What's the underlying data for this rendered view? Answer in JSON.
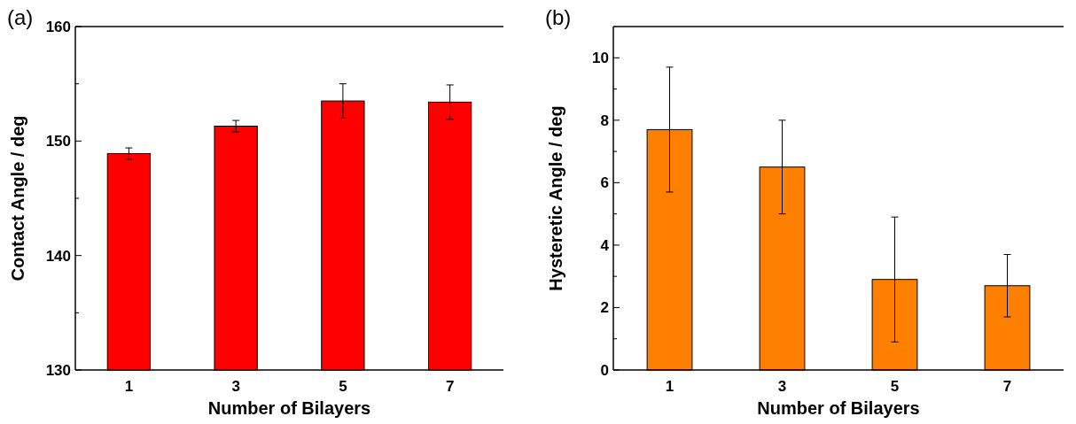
{
  "chart_data": [
    {
      "type": "bar",
      "title": "(a)",
      "xlabel": "Number of Bilayers",
      "ylabel": "Contact Angle / deg",
      "categories": [
        "1",
        "3",
        "5",
        "7"
      ],
      "values": [
        148.9,
        151.3,
        153.5,
        153.4
      ],
      "errors": [
        0.5,
        0.5,
        1.5,
        1.5
      ],
      "color": "#ff0000",
      "ylim": [
        130,
        160
      ],
      "yticks": [
        130,
        {
          "value": 135,
          "label": null
        },
        140,
        {
          "value": 145,
          "label": null
        },
        150,
        {
          "value": 155,
          "label": null
        },
        160
      ],
      "grid": false
    },
    {
      "type": "bar",
      "title": "(b)",
      "xlabel": "Number of Bilayers",
      "ylabel": "Hysteretic Angle / deg",
      "categories": [
        "1",
        "3",
        "5",
        "7"
      ],
      "values": [
        7.7,
        6.5,
        2.9,
        2.7
      ],
      "errors": [
        2,
        1.5,
        2,
        1
      ],
      "color": "#ff8000",
      "ylim": [
        0,
        11
      ],
      "yticks": [
        0,
        {
          "value": 1,
          "label": null
        },
        2,
        {
          "value": 3,
          "label": null
        },
        4,
        {
          "value": 5,
          "label": null
        },
        6,
        {
          "value": 7,
          "label": null
        },
        8,
        {
          "value": 9,
          "label": null
        },
        10
      ],
      "grid": false
    }
  ]
}
